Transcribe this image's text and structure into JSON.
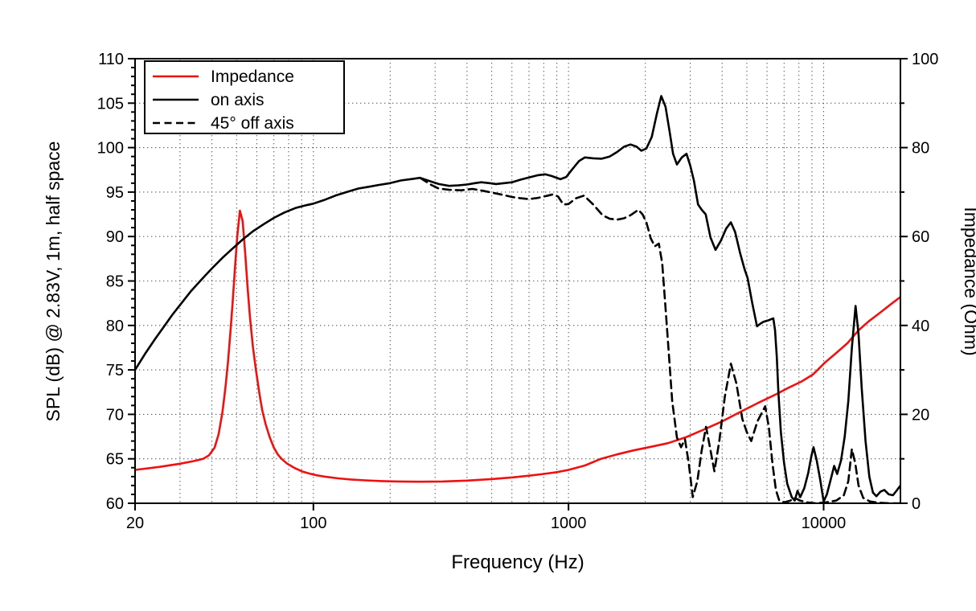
{
  "colors": {
    "background": "#ffffff",
    "frame": "#000000",
    "grid": "#606060",
    "impedance": "#ee1111",
    "black_curve": "#000000"
  },
  "chart_data": {
    "type": "line",
    "title": "",
    "xlabel": "Frequency (Hz)",
    "ylabel_left": "SPL (dB) @ 2.83V, 1m, half space",
    "ylabel_right": "Impedance (Ohm)",
    "x_scale": "log",
    "xlim": [
      20,
      20000
    ],
    "ylim_left": [
      60,
      110
    ],
    "ylim_right": [
      0,
      100
    ],
    "x_major_ticks": [
      20,
      100,
      1000,
      10000
    ],
    "x_major_tick_labels": [
      "20",
      "100",
      "1000",
      "10000"
    ],
    "x_grid_freqs": [
      30,
      40,
      50,
      60,
      70,
      80,
      90,
      100,
      200,
      300,
      400,
      500,
      600,
      700,
      800,
      900,
      1000,
      2000,
      3000,
      4000,
      5000,
      6000,
      7000,
      8000,
      9000,
      10000
    ],
    "y_left_major_ticks": [
      60,
      65,
      70,
      75,
      80,
      85,
      90,
      95,
      100,
      105,
      110
    ],
    "y_left_minor_step": 1,
    "y_right_major_ticks": [
      0,
      20,
      40,
      60,
      80,
      100
    ],
    "y_right_minor_ticks": [
      10,
      30,
      50,
      70,
      90
    ],
    "grid": "dotted",
    "legend_position": "top-left",
    "legend": [
      "Impedance",
      "on axis",
      "45° off axis"
    ],
    "series": [
      {
        "name": "Impedance",
        "axis": "right",
        "style": "solid",
        "color": "#ee1111",
        "unit": "Ohm",
        "points": [
          [
            20,
            7.5
          ],
          [
            25,
            8.2
          ],
          [
            30,
            8.9
          ],
          [
            34,
            9.5
          ],
          [
            37,
            10.0
          ],
          [
            39,
            10.8
          ],
          [
            41,
            12.5
          ],
          [
            42.5,
            15.5
          ],
          [
            44,
            20.5
          ],
          [
            45.2,
            26.0
          ],
          [
            46.3,
            32.0
          ],
          [
            47.3,
            38.5
          ],
          [
            48.3,
            45.5
          ],
          [
            49.3,
            53.0
          ],
          [
            50.3,
            60.0
          ],
          [
            51.5,
            65.8
          ],
          [
            52.8,
            63.5
          ],
          [
            54,
            56.5
          ],
          [
            55.3,
            48.0
          ],
          [
            56.5,
            41.5
          ],
          [
            58,
            35.0
          ],
          [
            59.6,
            29.8
          ],
          [
            61.3,
            25.0
          ],
          [
            63,
            21.0
          ],
          [
            65,
            17.8
          ],
          [
            67.5,
            14.8
          ],
          [
            70,
            12.5
          ],
          [
            72.5,
            11.0
          ],
          [
            75,
            10.0
          ],
          [
            79,
            8.9
          ],
          [
            84,
            8.0
          ],
          [
            90,
            7.2
          ],
          [
            96,
            6.7
          ],
          [
            103,
            6.3
          ],
          [
            112,
            5.95
          ],
          [
            125,
            5.6
          ],
          [
            140,
            5.35
          ],
          [
            160,
            5.15
          ],
          [
            185,
            5.0
          ],
          [
            215,
            4.9
          ],
          [
            260,
            4.85
          ],
          [
            320,
            4.9
          ],
          [
            400,
            5.1
          ],
          [
            500,
            5.45
          ],
          [
            600,
            5.8
          ],
          [
            700,
            6.2
          ],
          [
            800,
            6.6
          ],
          [
            900,
            7.0
          ],
          [
            1000,
            7.5
          ],
          [
            1160,
            8.5
          ],
          [
            1340,
            10.0
          ],
          [
            1550,
            11.0
          ],
          [
            1800,
            11.9
          ],
          [
            2100,
            12.7
          ],
          [
            2450,
            13.5
          ],
          [
            2900,
            14.9
          ],
          [
            3400,
            16.6
          ],
          [
            4000,
            18.4
          ],
          [
            4700,
            20.5
          ],
          [
            5500,
            22.5
          ],
          [
            6400,
            24.3
          ],
          [
            7300,
            26.0
          ],
          [
            8200,
            27.4
          ],
          [
            9100,
            29.0
          ],
          [
            10100,
            31.6
          ],
          [
            11200,
            33.8
          ],
          [
            12400,
            36.0
          ],
          [
            13700,
            38.9
          ],
          [
            15000,
            40.9
          ],
          [
            16500,
            42.7
          ],
          [
            18100,
            44.5
          ],
          [
            20000,
            46.4
          ]
        ]
      },
      {
        "name": "on axis",
        "axis": "left",
        "style": "solid",
        "color": "#000000",
        "unit": "dB",
        "points": [
          [
            20,
            75.0
          ],
          [
            22,
            76.9
          ],
          [
            24,
            78.5
          ],
          [
            26,
            79.9
          ],
          [
            28,
            81.2
          ],
          [
            30,
            82.3
          ],
          [
            33,
            83.8
          ],
          [
            36,
            85.0
          ],
          [
            40,
            86.4
          ],
          [
            44,
            87.6
          ],
          [
            48,
            88.6
          ],
          [
            53,
            89.7
          ],
          [
            58,
            90.6
          ],
          [
            64,
            91.4
          ],
          [
            70,
            92.1
          ],
          [
            77,
            92.7
          ],
          [
            85,
            93.2
          ],
          [
            93,
            93.5
          ],
          [
            100,
            93.7
          ],
          [
            110,
            94.1
          ],
          [
            122,
            94.6
          ],
          [
            135,
            95.0
          ],
          [
            150,
            95.4
          ],
          [
            165,
            95.6
          ],
          [
            180,
            95.8
          ],
          [
            200,
            96.0
          ],
          [
            220,
            96.3
          ],
          [
            240,
            96.45
          ],
          [
            262,
            96.6
          ],
          [
            285,
            96.25
          ],
          [
            310,
            95.9
          ],
          [
            340,
            95.7
          ],
          [
            370,
            95.75
          ],
          [
            400,
            95.85
          ],
          [
            430,
            96.0
          ],
          [
            455,
            96.1
          ],
          [
            490,
            96.0
          ],
          [
            520,
            95.9
          ],
          [
            560,
            96.0
          ],
          [
            600,
            96.1
          ],
          [
            650,
            96.4
          ],
          [
            700,
            96.65
          ],
          [
            760,
            96.9
          ],
          [
            810,
            97.0
          ],
          [
            860,
            96.8
          ],
          [
            930,
            96.45
          ],
          [
            980,
            96.7
          ],
          [
            1030,
            97.5
          ],
          [
            1100,
            98.5
          ],
          [
            1160,
            98.9
          ],
          [
            1250,
            98.8
          ],
          [
            1350,
            98.75
          ],
          [
            1450,
            99.0
          ],
          [
            1550,
            99.5
          ],
          [
            1650,
            100.1
          ],
          [
            1750,
            100.35
          ],
          [
            1850,
            100.1
          ],
          [
            1930,
            99.65
          ],
          [
            2020,
            99.9
          ],
          [
            2120,
            101.2
          ],
          [
            2220,
            103.8
          ],
          [
            2310,
            105.8
          ],
          [
            2400,
            104.6
          ],
          [
            2490,
            101.8
          ],
          [
            2570,
            99.3
          ],
          [
            2660,
            98.1
          ],
          [
            2780,
            98.9
          ],
          [
            2900,
            99.3
          ],
          [
            3000,
            98.0
          ],
          [
            3100,
            96.3
          ],
          [
            3220,
            93.6
          ],
          [
            3330,
            93.0
          ],
          [
            3450,
            92.5
          ],
          [
            3600,
            89.9
          ],
          [
            3770,
            88.5
          ],
          [
            3950,
            89.5
          ],
          [
            4150,
            90.9
          ],
          [
            4330,
            91.6
          ],
          [
            4500,
            90.5
          ],
          [
            4700,
            88.2
          ],
          [
            4900,
            86.3
          ],
          [
            5040,
            85.3
          ],
          [
            5250,
            82.5
          ],
          [
            5480,
            79.9
          ],
          [
            5650,
            80.2
          ],
          [
            5800,
            80.4
          ],
          [
            6100,
            80.6
          ],
          [
            6350,
            80.8
          ],
          [
            6450,
            79.5
          ],
          [
            6550,
            76.5
          ],
          [
            6650,
            72.5
          ],
          [
            6800,
            68.0
          ],
          [
            7000,
            64.5
          ],
          [
            7200,
            62.2
          ],
          [
            7500,
            60.7
          ],
          [
            7700,
            60.3
          ],
          [
            7900,
            61.4
          ],
          [
            8100,
            60.7
          ],
          [
            8400,
            61.7
          ],
          [
            8700,
            63.4
          ],
          [
            8950,
            65.3
          ],
          [
            9130,
            66.3
          ],
          [
            9400,
            64.8
          ],
          [
            9700,
            62.6
          ],
          [
            10000,
            60.2
          ],
          [
            10300,
            61.0
          ],
          [
            10600,
            62.4
          ],
          [
            11000,
            64.2
          ],
          [
            11300,
            63.3
          ],
          [
            11700,
            64.8
          ],
          [
            12100,
            67.5
          ],
          [
            12500,
            71.5
          ],
          [
            12900,
            77.5
          ],
          [
            13340,
            82.2
          ],
          [
            13700,
            79.0
          ],
          [
            14100,
            73.0
          ],
          [
            14600,
            67.0
          ],
          [
            15100,
            63.0
          ],
          [
            15600,
            61.2
          ],
          [
            16100,
            60.8
          ],
          [
            16700,
            61.3
          ],
          [
            17300,
            61.5
          ],
          [
            18000,
            61.0
          ],
          [
            18700,
            60.9
          ],
          [
            19300,
            61.4
          ],
          [
            20000,
            62.0
          ]
        ]
      },
      {
        "name": "45° off axis",
        "axis": "left",
        "style": "dashed",
        "color": "#000000",
        "unit": "dB",
        "points": [
          [
            262,
            96.6
          ],
          [
            272,
            96.3
          ],
          [
            290,
            95.8
          ],
          [
            310,
            95.4
          ],
          [
            340,
            95.25
          ],
          [
            380,
            95.2
          ],
          [
            420,
            95.35
          ],
          [
            460,
            95.15
          ],
          [
            500,
            94.95
          ],
          [
            550,
            94.7
          ],
          [
            600,
            94.45
          ],
          [
            650,
            94.3
          ],
          [
            700,
            94.2
          ],
          [
            760,
            94.35
          ],
          [
            830,
            94.6
          ],
          [
            870,
            94.75
          ],
          [
            910,
            94.5
          ],
          [
            955,
            93.6
          ],
          [
            1000,
            93.65
          ],
          [
            1070,
            94.3
          ],
          [
            1150,
            94.6
          ],
          [
            1250,
            93.6
          ],
          [
            1360,
            92.4
          ],
          [
            1450,
            92.0
          ],
          [
            1550,
            91.9
          ],
          [
            1650,
            92.05
          ],
          [
            1750,
            92.4
          ],
          [
            1880,
            93.0
          ],
          [
            1950,
            92.5
          ],
          [
            2020,
            91.6
          ],
          [
            2100,
            89.8
          ],
          [
            2180,
            88.9
          ],
          [
            2260,
            89.2
          ],
          [
            2330,
            87.0
          ],
          [
            2400,
            82.0
          ],
          [
            2470,
            77.0
          ],
          [
            2550,
            71.5
          ],
          [
            2660,
            67.4
          ],
          [
            2760,
            66.3
          ],
          [
            2860,
            67.2
          ],
          [
            2960,
            64.5
          ],
          [
            3070,
            60.7
          ],
          [
            3200,
            62.5
          ],
          [
            3330,
            66.0
          ],
          [
            3460,
            68.6
          ],
          [
            3600,
            66.0
          ],
          [
            3730,
            63.6
          ],
          [
            3900,
            67.0
          ],
          [
            4100,
            72.0
          ],
          [
            4330,
            75.7
          ],
          [
            4550,
            73.5
          ],
          [
            4800,
            69.5
          ],
          [
            5000,
            68.0
          ],
          [
            5200,
            67.0
          ],
          [
            5500,
            69.2
          ],
          [
            5900,
            70.9
          ],
          [
            6100,
            68.5
          ],
          [
            6300,
            64.5
          ],
          [
            6500,
            61.5
          ],
          [
            6700,
            60.3
          ],
          [
            7000,
            60.1
          ],
          [
            7400,
            60.3
          ],
          [
            7700,
            60.6
          ],
          [
            8100,
            60.3
          ],
          [
            8600,
            60.1
          ],
          [
            9300,
            60.0
          ],
          [
            10200,
            60.1
          ],
          [
            11200,
            60.3
          ],
          [
            12000,
            60.9
          ],
          [
            12500,
            62.5
          ],
          [
            12900,
            66.1
          ],
          [
            13300,
            64.5
          ],
          [
            13700,
            62.0
          ],
          [
            14300,
            60.6
          ],
          [
            15200,
            60.2
          ],
          [
            16500,
            60.05
          ],
          [
            18000,
            60.0
          ],
          [
            20000,
            60.0
          ]
        ]
      }
    ]
  }
}
